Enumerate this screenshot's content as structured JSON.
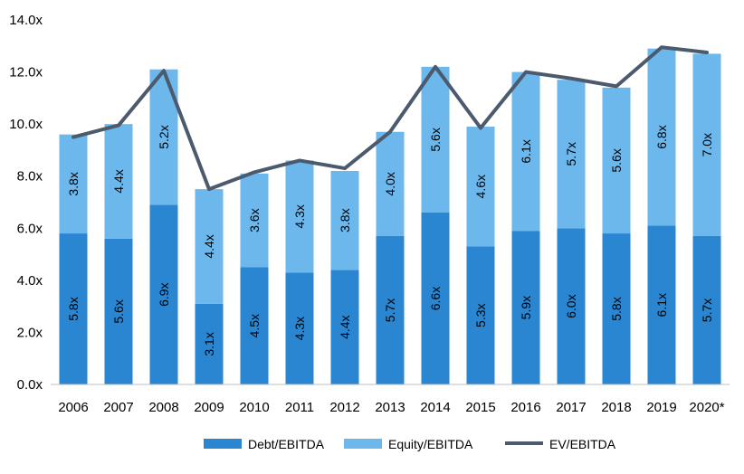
{
  "chart_data": {
    "type": "bar",
    "stacked": true,
    "categories": [
      "2006",
      "2007",
      "2008",
      "2009",
      "2010",
      "2011",
      "2012",
      "2013",
      "2014",
      "2015",
      "2016",
      "2017",
      "2018",
      "2019",
      "2020*"
    ],
    "series": [
      {
        "name": "Debt/EBITDA",
        "color": "#2a86d1",
        "values": [
          5.8,
          5.6,
          6.9,
          3.1,
          4.5,
          4.3,
          4.4,
          5.7,
          6.6,
          5.3,
          5.9,
          6.0,
          5.8,
          6.1,
          5.7
        ],
        "labels": [
          "5.8x",
          "5.6x",
          "6.9x",
          "3.1x",
          "4.5x",
          "4.3x",
          "4.4x",
          "5.7x",
          "6.6x",
          "5.3x",
          "5.9x",
          "6.0x",
          "5.8x",
          "6.1x",
          "5.7x"
        ]
      },
      {
        "name": "Equity/EBITDA",
        "color": "#6cb7ec",
        "values": [
          3.8,
          4.4,
          5.2,
          4.4,
          3.6,
          4.3,
          3.8,
          4.0,
          5.6,
          4.6,
          6.1,
          5.7,
          5.6,
          6.8,
          7.0
        ],
        "labels": [
          "3.8x",
          "4.4x",
          "5.2x",
          "4.4x",
          "3.6x",
          "4.3x",
          "3.8x",
          "4.0x",
          "5.6x",
          "4.6x",
          "6.1x",
          "5.7x",
          "5.6x",
          "6.8x",
          "7.0x"
        ]
      }
    ],
    "line_series": {
      "name": "EV/EBITDA",
      "color": "#4b5a6c",
      "values": [
        9.5,
        9.95,
        12.05,
        7.5,
        8.15,
        8.6,
        8.3,
        9.7,
        12.2,
        9.85,
        12.0,
        11.75,
        11.45,
        12.95,
        12.75
      ]
    },
    "yticks": [
      "0.0x",
      "2.0x",
      "4.0x",
      "6.0x",
      "8.0x",
      "10.0x",
      "12.0x",
      "14.0x"
    ],
    "ylim": [
      0,
      14
    ],
    "grid": false,
    "legend_position": "bottom"
  }
}
